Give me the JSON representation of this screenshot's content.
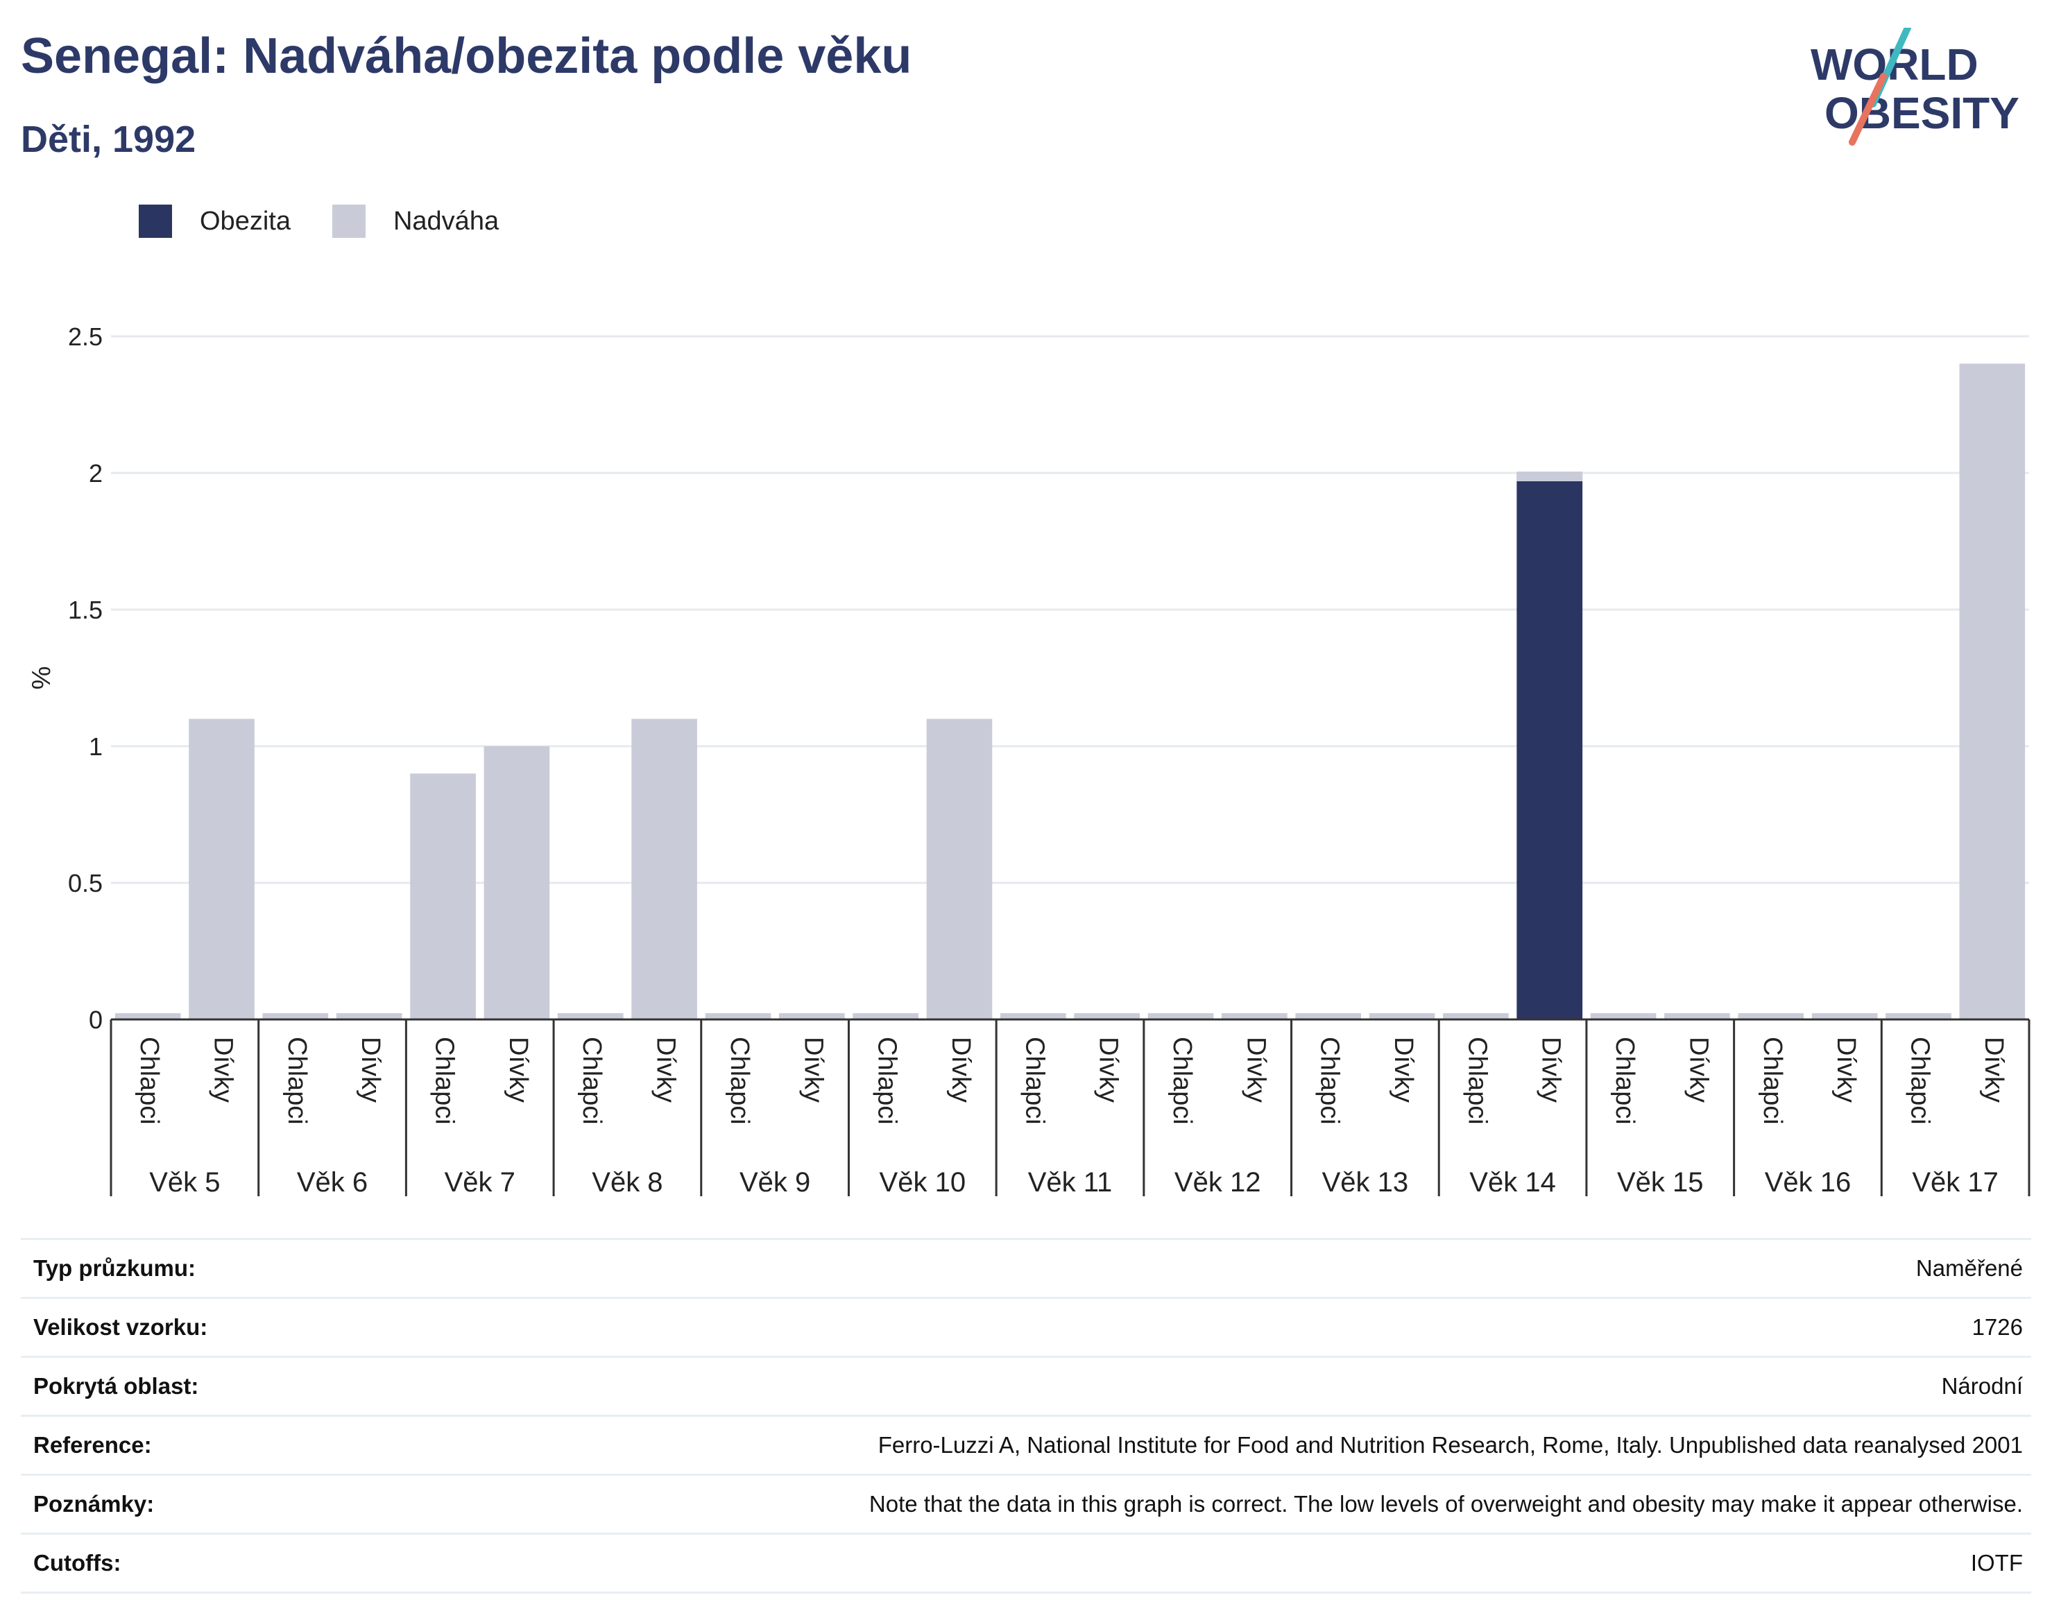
{
  "header": {
    "title": "Senegal: Nadváha/obezita podle věku",
    "subtitle": "Děti, 1992"
  },
  "logo": {
    "line1": "WORLD",
    "line2": "OBESITY"
  },
  "colors": {
    "obesity": "#2b3561",
    "overweight": "#c9ccd8",
    "title": "#2d3a68",
    "accent_teal": "#3fb8c0",
    "accent_coral": "#e8735f"
  },
  "legend": [
    {
      "label": "Obezita",
      "color": "#2b3561"
    },
    {
      "label": "Nadváha",
      "color": "#c9ccd8"
    }
  ],
  "chart_data": {
    "type": "bar",
    "stacked": true,
    "ylabel": "%",
    "ylim": [
      0,
      2.5
    ],
    "yticks": [
      "0",
      "0.5",
      "1",
      "1.5",
      "2",
      "2.5"
    ],
    "grid": true,
    "groups": [
      "Věk 5",
      "Věk 6",
      "Věk 7",
      "Věk 8",
      "Věk 9",
      "Věk 10",
      "Věk 11",
      "Věk 12",
      "Věk 13",
      "Věk 14",
      "Věk 15",
      "Věk 16",
      "Věk 17"
    ],
    "subcategories": [
      "Chlapci",
      "Dívky"
    ],
    "series": [
      {
        "name": "Obezita",
        "values": [
          [
            0,
            0
          ],
          [
            0,
            0
          ],
          [
            0,
            0
          ],
          [
            0,
            0
          ],
          [
            0,
            0
          ],
          [
            0,
            0
          ],
          [
            0,
            0
          ],
          [
            0,
            0
          ],
          [
            0,
            0
          ],
          [
            0,
            2.0
          ],
          [
            0,
            0
          ],
          [
            0,
            0
          ],
          [
            0,
            0
          ]
        ]
      },
      {
        "name": "Nadváha",
        "values": [
          [
            0,
            1.1
          ],
          [
            0,
            0
          ],
          [
            0.9,
            1.0
          ],
          [
            0,
            1.1
          ],
          [
            0,
            0
          ],
          [
            0,
            1.1
          ],
          [
            0,
            0
          ],
          [
            0,
            0
          ],
          [
            0,
            0
          ],
          [
            0,
            0
          ],
          [
            0,
            0
          ],
          [
            0,
            0
          ],
          [
            0,
            2.4
          ]
        ]
      }
    ]
  },
  "info": [
    {
      "label": "Typ průzkumu:",
      "value": "Naměřené"
    },
    {
      "label": "Velikost vzorku:",
      "value": "1726"
    },
    {
      "label": "Pokrytá oblast:",
      "value": "Národní"
    },
    {
      "label": "Reference:",
      "value": "Ferro-Luzzi A, National Institute for Food and Nutrition Research, Rome, Italy. Unpublished data reanalysed 2001"
    },
    {
      "label": "Poznámky:",
      "value": "Note that the data in this graph is correct. The low levels of overweight and obesity may make it appear otherwise."
    },
    {
      "label": "Cutoffs:",
      "value": "IOTF"
    }
  ]
}
